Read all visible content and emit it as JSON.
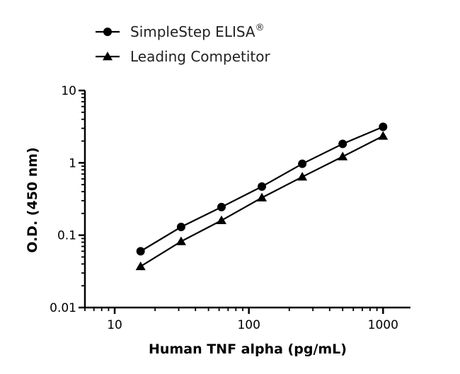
{
  "chart_data": {
    "type": "line",
    "xscale": "log",
    "yscale": "log",
    "xlabel": "Human TNF alpha (pg/mL)",
    "ylabel": "O.D. (450 nm)",
    "xlim": [
      6,
      1600
    ],
    "ylim": [
      0.01,
      10
    ],
    "x_ticks": [
      {
        "value": 10,
        "label": "10"
      },
      {
        "value": 100,
        "label": "100"
      },
      {
        "value": 1000,
        "label": "1000"
      }
    ],
    "y_ticks": [
      {
        "value": 0.01,
        "label": "0.01"
      },
      {
        "value": 0.1,
        "label": "0.1"
      },
      {
        "value": 1,
        "label": "1"
      },
      {
        "value": 10,
        "label": "10"
      }
    ],
    "legend_position": "top-left",
    "grid": false,
    "series": [
      {
        "name": "SimpleStep ELISA",
        "name_sup": "®",
        "marker": "circle",
        "color": "#000000",
        "x": [
          15.6,
          31.25,
          62.5,
          125,
          250,
          500,
          1000
        ],
        "y": [
          0.06,
          0.13,
          0.245,
          0.47,
          0.97,
          1.83,
          3.15
        ]
      },
      {
        "name": "Leading Competitor",
        "marker": "triangle",
        "color": "#000000",
        "x": [
          15.6,
          31.25,
          62.5,
          125,
          250,
          500,
          1000
        ],
        "y": [
          0.037,
          0.082,
          0.16,
          0.33,
          0.64,
          1.22,
          2.35
        ]
      }
    ]
  }
}
